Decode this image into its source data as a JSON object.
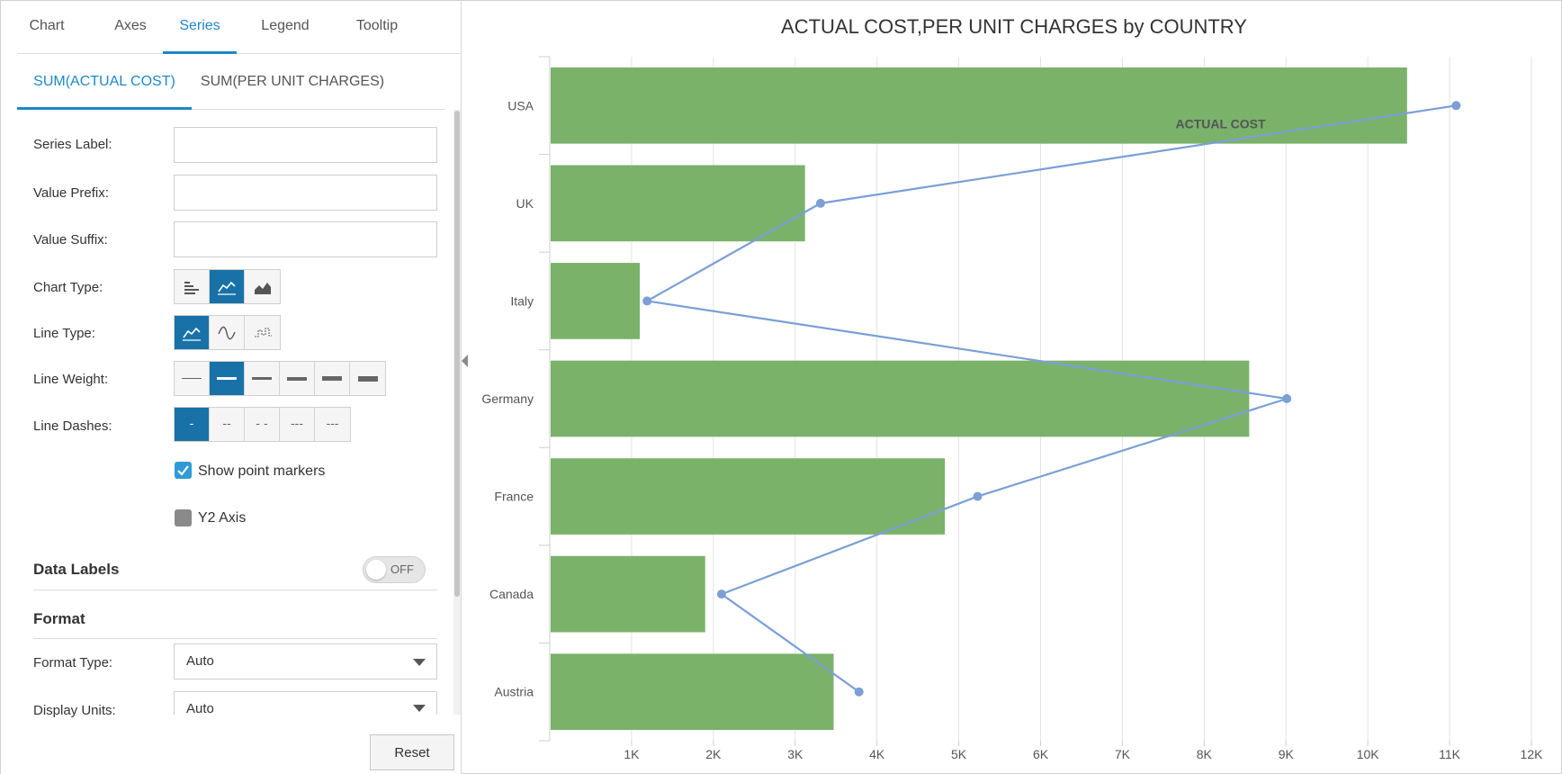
{
  "tabs": [
    "Chart",
    "Axes",
    "Series",
    "Legend",
    "Tooltip"
  ],
  "active_tab": "Series",
  "series_tabs": [
    "SUM(ACTUAL COST)",
    "SUM(PER UNIT CHARGES)"
  ],
  "active_series_tab": "SUM(ACTUAL COST)",
  "form": {
    "series_label": "Series Label:",
    "series_label_value": "",
    "value_prefix": "Value Prefix:",
    "value_prefix_value": "",
    "value_suffix": "Value Suffix:",
    "value_suffix_value": "",
    "chart_type": "Chart Type:",
    "chart_type_options": [
      "bar-chart-icon",
      "line-chart-icon",
      "area-chart-icon"
    ],
    "chart_type_selected": 1,
    "line_type": "Line Type:",
    "line_type_options": [
      "straight-line-icon",
      "spline-line-icon",
      "step-line-icon"
    ],
    "line_type_selected": 0,
    "line_weight": "Line Weight:",
    "line_weight_selected": 1,
    "line_dashes": "Line Dashes:",
    "line_dash_options": [
      "-",
      "--",
      "- -",
      "---",
      "---"
    ],
    "line_dash_selected": 0,
    "show_point_markers": "Show point markers",
    "show_point_markers_checked": true,
    "y2_axis": "Y2 Axis",
    "y2_axis_checked": false,
    "data_labels": "Data Labels",
    "data_labels_toggle": "OFF",
    "format": "Format",
    "format_type": "Format Type:",
    "format_type_value": "Auto",
    "display_units": "Display Units:",
    "display_units_value": "Auto",
    "reset": "Reset"
  },
  "colors": {
    "accent": "#1f87c9",
    "button_active": "#1872a8",
    "bar": "#7ab26a",
    "line": "#7b9fd6"
  },
  "chart_data": {
    "type": "bar",
    "orientation": "horizontal",
    "title": "ACTUAL COST,PER UNIT CHARGES by COUNTRY",
    "categories": [
      "USA",
      "UK",
      "Italy",
      "Germany",
      "France",
      "Canada",
      "Austria"
    ],
    "series": [
      {
        "kind": "bar",
        "values": [
          10480,
          3120,
          1100,
          8550,
          4830,
          1900,
          3470
        ]
      },
      {
        "kind": "line",
        "name": "ACTUAL COST",
        "values": [
          11080,
          3310,
          1190,
          9010,
          5230,
          2100,
          3780
        ]
      }
    ],
    "x_ticks": [
      "1K",
      "2K",
      "3K",
      "4K",
      "5K",
      "6K",
      "7K",
      "8K",
      "9K",
      "10K",
      "11K",
      "12K"
    ],
    "xlim": [
      0,
      12000
    ],
    "grid": true
  }
}
